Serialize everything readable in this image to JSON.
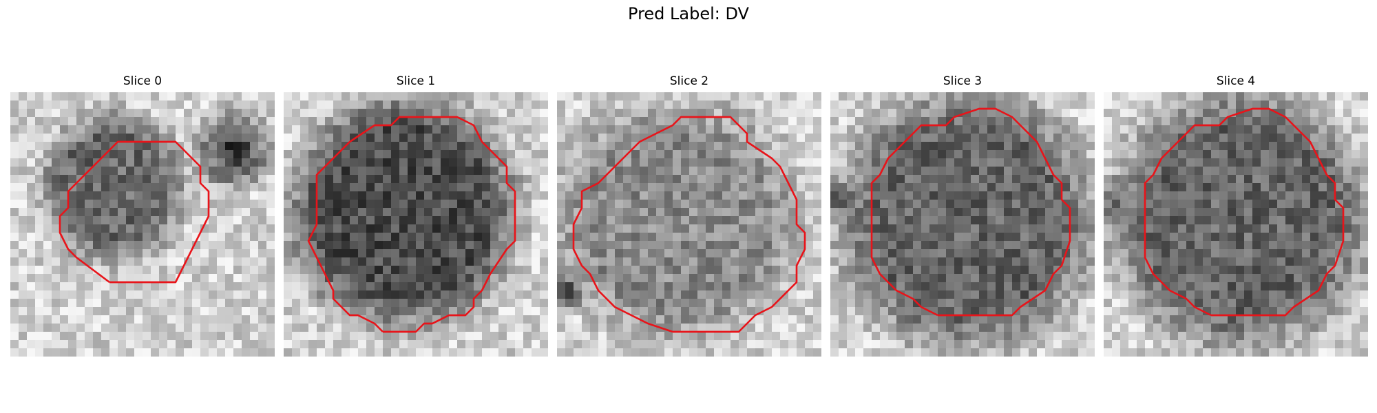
{
  "figure": {
    "title": "Pred Label: DV",
    "panels": [
      {
        "title": "Slice 0"
      },
      {
        "title": "Slice 1"
      },
      {
        "title": "Slice 2"
      },
      {
        "title": "Slice 3"
      },
      {
        "title": "Slice 4"
      }
    ],
    "grid_size": 32,
    "contour_color": "#e8141a"
  }
}
